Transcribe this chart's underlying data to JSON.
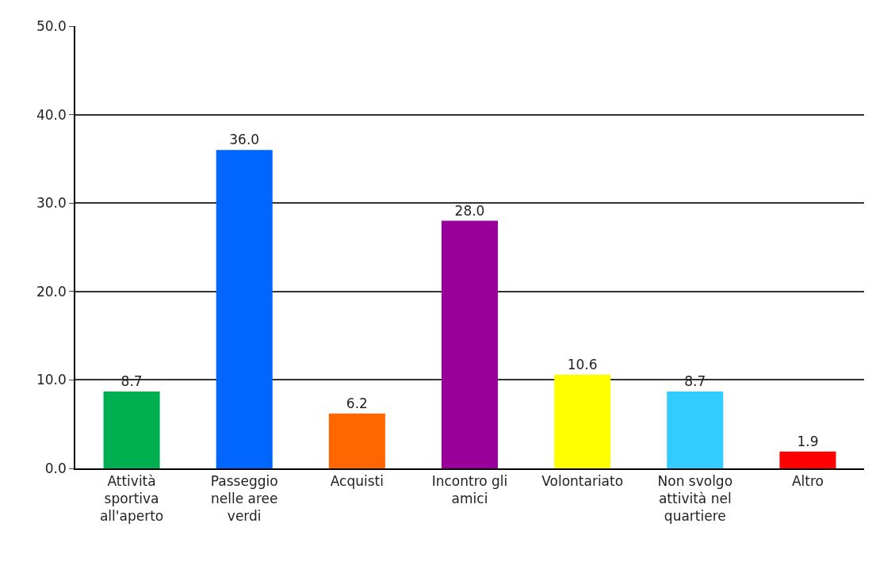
{
  "chart_data": {
    "type": "bar",
    "categories": [
      "Attività sportiva all'aperto",
      "Passeggio nelle aree verdi",
      "Acquisti",
      "Incontro gli amici",
      "Volontariato",
      "Non svolgo attività nel quartiere",
      "Altro"
    ],
    "values": [
      8.7,
      36.0,
      6.2,
      28.0,
      10.6,
      8.7,
      1.9
    ],
    "colors": [
      "#00b050",
      "#0066ff",
      "#ff6600",
      "#990099",
      "#ffff00",
      "#33ccff",
      "#ff0000"
    ],
    "value_labels": [
      "8.7",
      "36.0",
      "6.2",
      "28.0",
      "10.6",
      "8.7",
      "1.9"
    ],
    "ylim": [
      0,
      50
    ],
    "yticks": [
      {
        "value": 0,
        "label": "0.0"
      },
      {
        "value": 10,
        "label": "10.0"
      },
      {
        "value": 20,
        "label": "20.0"
      },
      {
        "value": 30,
        "label": "30.0"
      },
      {
        "value": 40,
        "label": "40.0"
      },
      {
        "value": 50,
        "label": "50.0"
      }
    ],
    "grid": "y"
  }
}
